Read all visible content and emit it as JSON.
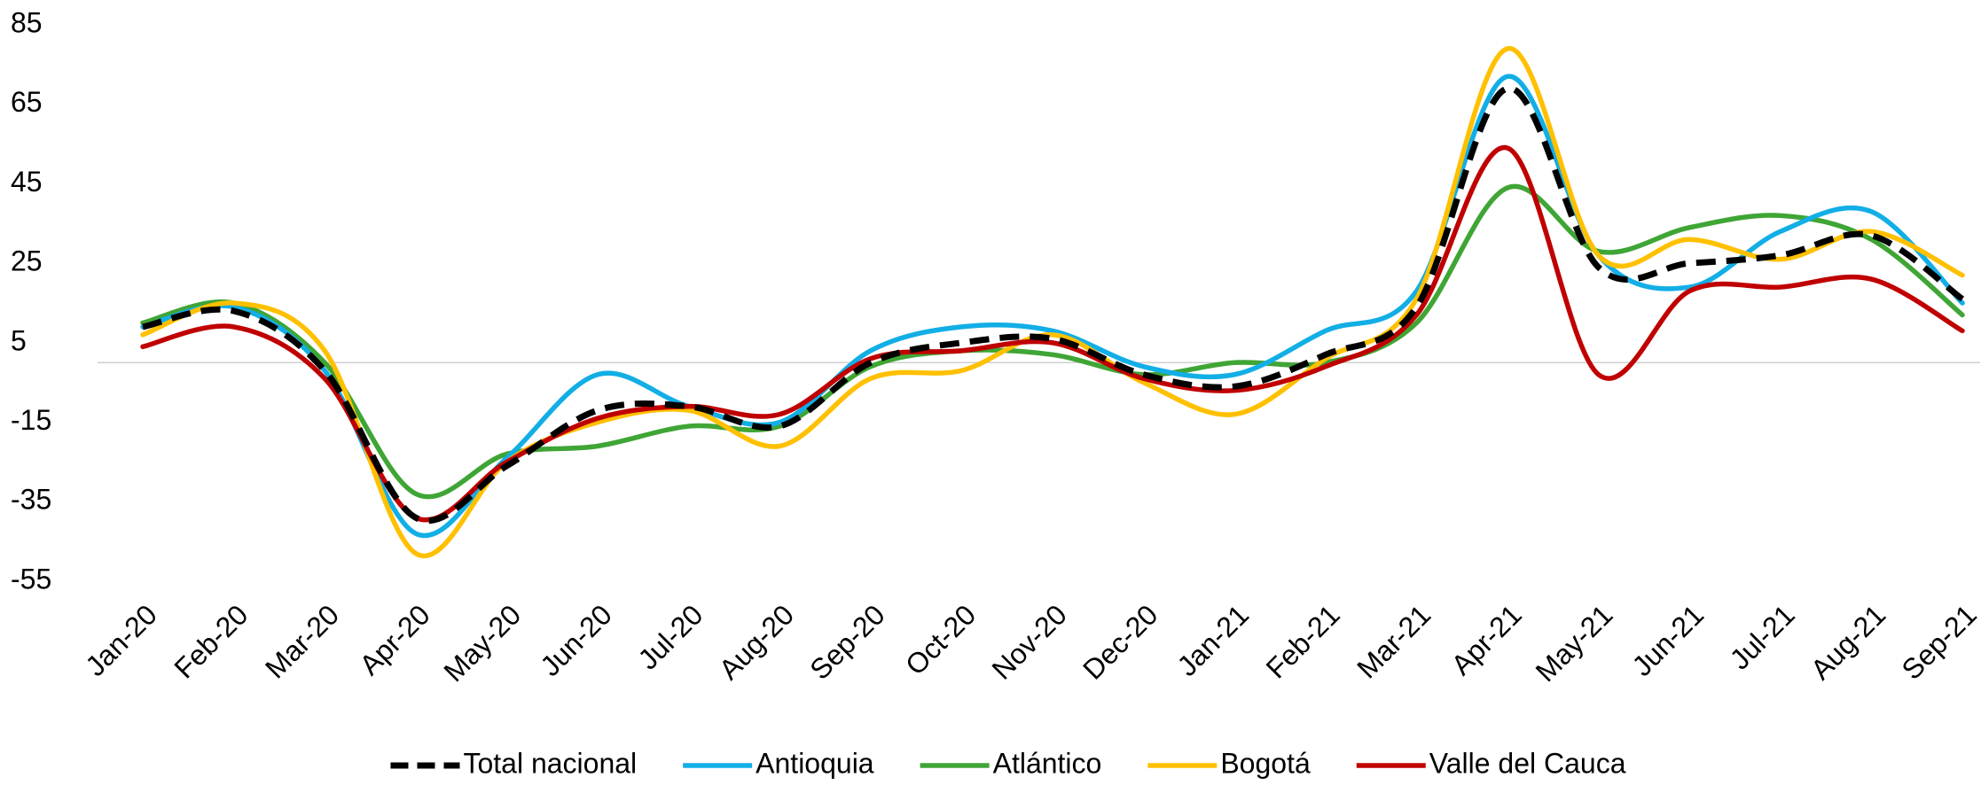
{
  "chart_data": {
    "type": "line",
    "categories": [
      "Jan-20",
      "Feb-20",
      "Mar-20",
      "Apr-20",
      "May-20",
      "Jun-20",
      "Jul-20",
      "Aug-20",
      "Sep-20",
      "Oct-20",
      "Nov-20",
      "Dec-20",
      "Jan-21",
      "Feb-21",
      "Mar-21",
      "Apr-21",
      "May-21",
      "Jun-21",
      "Jul-21",
      "Aug-21",
      "Sep-21"
    ],
    "series": [
      {
        "name": "Total nacional",
        "color": "#000000",
        "dashed": true,
        "values": [
          9,
          13,
          -2,
          -39,
          -26,
          -12,
          -11,
          -16,
          0,
          5,
          6,
          -3,
          -6,
          2,
          14,
          69,
          24,
          25,
          27,
          32,
          16
        ]
      },
      {
        "name": "Antioquia",
        "color": "#12aee6",
        "values": [
          9,
          14,
          -2,
          -43,
          -24,
          -3,
          -11,
          -15,
          3,
          9,
          8,
          -1,
          -3,
          8,
          18,
          72,
          27,
          19,
          33,
          38,
          15
        ]
      },
      {
        "name": "Atlántico",
        "color": "#3fa535",
        "values": [
          10,
          15,
          0,
          -33,
          -23,
          -21,
          -16,
          -16,
          -1,
          3,
          2,
          -3,
          0,
          0,
          10,
          44,
          28,
          34,
          37,
          31,
          12
        ]
      },
      {
        "name": "Bogotá",
        "color": "#ffc000",
        "values": [
          7,
          15,
          3,
          -48,
          -25,
          -15,
          -12,
          -21,
          -4,
          -2,
          7,
          -5,
          -13,
          1,
          16,
          79,
          27,
          31,
          26,
          33,
          22
        ]
      },
      {
        "name": "Valle del Cauca",
        "color": "#c00000",
        "values": [
          4,
          9,
          -4,
          -39,
          -25,
          -14,
          -11,
          -13,
          1,
          3,
          5,
          -4,
          -7,
          -1,
          12,
          54,
          -3,
          18,
          19,
          21,
          8
        ]
      }
    ],
    "ylim": [
      -55,
      85
    ],
    "yticks": [
      -55,
      -35,
      -15,
      5,
      25,
      45,
      65,
      85
    ],
    "grid": false,
    "legend": "bottom"
  }
}
